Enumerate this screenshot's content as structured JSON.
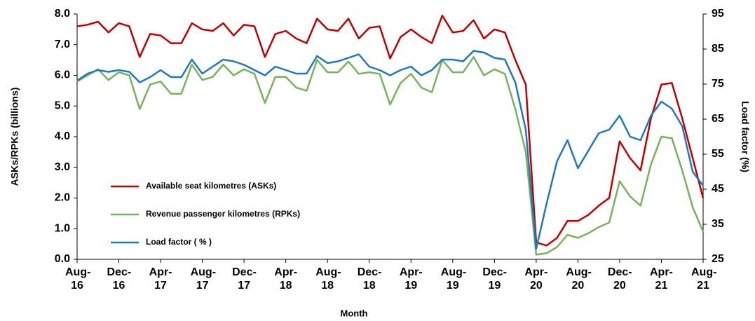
{
  "chart_data": {
    "type": "line",
    "x_label": "Month",
    "y_label": "ASKs/RPKs (billions)",
    "y2_label": "Load factor (%)",
    "categories": [
      "Aug-16",
      null,
      null,
      null,
      "Dec-16",
      null,
      null,
      null,
      "Apr-17",
      null,
      null,
      null,
      "Aug-17",
      null,
      null,
      null,
      "Dec-17",
      null,
      null,
      null,
      "Apr-18",
      null,
      null,
      null,
      "Aug-18",
      null,
      null,
      null,
      "Dec-18",
      null,
      null,
      null,
      "Apr-19",
      null,
      null,
      null,
      "Aug-19",
      null,
      null,
      null,
      "Dec-19",
      null,
      null,
      null,
      "Apr-20",
      null,
      null,
      null,
      "Aug-20",
      null,
      null,
      null,
      "Dec-20",
      null,
      null,
      null,
      "Apr-21",
      null,
      null,
      null,
      "Aug-21"
    ],
    "series": [
      {
        "name": "Available seat kilometres (ASKs)",
        "color": "#c00000",
        "values": [
          7.6,
          7.65,
          7.75,
          7.4,
          7.7,
          7.6,
          6.6,
          7.35,
          7.3,
          7.05,
          7.05,
          7.7,
          7.5,
          7.45,
          7.7,
          7.3,
          7.65,
          7.6,
          6.6,
          7.35,
          7.45,
          7.2,
          7.05,
          7.85,
          7.5,
          7.45,
          7.85,
          7.2,
          7.55,
          7.6,
          6.55,
          7.25,
          7.5,
          7.25,
          7.05,
          7.95,
          7.4,
          7.45,
          7.8,
          7.2,
          7.5,
          7.4,
          6.5,
          5.7,
          0.55,
          0.45,
          0.7,
          1.25,
          1.25,
          1.45,
          1.75,
          2.0,
          3.85,
          3.3,
          2.9,
          4.6,
          5.7,
          5.75,
          4.6,
          3.3,
          2.0
        ]
      },
      {
        "name": "Revenue passenger kilometres (RPKs)",
        "color": "#77b35a",
        "values": [
          5.8,
          6.0,
          6.2,
          5.85,
          6.1,
          6.0,
          4.9,
          5.7,
          5.8,
          5.4,
          5.4,
          6.35,
          5.85,
          5.95,
          6.35,
          6.0,
          6.2,
          6.05,
          5.1,
          5.95,
          5.95,
          5.6,
          5.5,
          6.5,
          6.1,
          6.1,
          6.45,
          6.05,
          6.1,
          6.05,
          5.05,
          5.75,
          6.05,
          5.6,
          5.45,
          6.5,
          6.1,
          6.1,
          6.6,
          6.0,
          6.2,
          6.05,
          4.9,
          3.5,
          0.15,
          0.2,
          0.4,
          0.8,
          0.7,
          0.85,
          1.05,
          1.2,
          2.55,
          2.05,
          1.75,
          3.1,
          4.0,
          3.95,
          2.9,
          1.7,
          0.9
        ]
      },
      {
        "name": "Load factor ( % )",
        "color": "#1f77c0",
        "axis": "y2",
        "values": [
          76,
          78,
          79,
          78.5,
          79,
          78.5,
          75.5,
          77,
          79,
          77,
          77,
          82,
          78,
          80,
          82,
          81.5,
          80.5,
          79,
          77.5,
          80,
          79,
          78,
          78,
          83,
          81,
          81.5,
          82.5,
          83.5,
          80,
          79,
          77.5,
          79,
          80,
          77.5,
          79,
          82,
          82,
          81.5,
          84.5,
          84,
          82.5,
          82,
          75.5,
          62,
          28,
          41,
          53,
          59,
          51,
          56,
          61,
          62,
          66,
          60,
          59,
          66,
          70,
          68,
          63,
          50,
          46
        ]
      }
    ],
    "ylim": [
      0,
      8
    ],
    "yticks": [
      {
        "value": 0,
        "label": "0.0"
      },
      {
        "value": 1,
        "label": "1.0"
      },
      {
        "value": 2,
        "label": "2.0"
      },
      {
        "value": 3,
        "label": "3.0"
      },
      {
        "value": 4,
        "label": "4.0"
      },
      {
        "value": 5,
        "label": "5.0"
      },
      {
        "value": 6,
        "label": "6.0"
      },
      {
        "value": 7,
        "label": "7.0"
      },
      {
        "value": 8,
        "label": "8.0"
      }
    ],
    "y2lim": [
      25,
      95
    ],
    "y2ticks": [
      25,
      35,
      45,
      55,
      65,
      75,
      85,
      95
    ],
    "legend": "lower-left"
  }
}
